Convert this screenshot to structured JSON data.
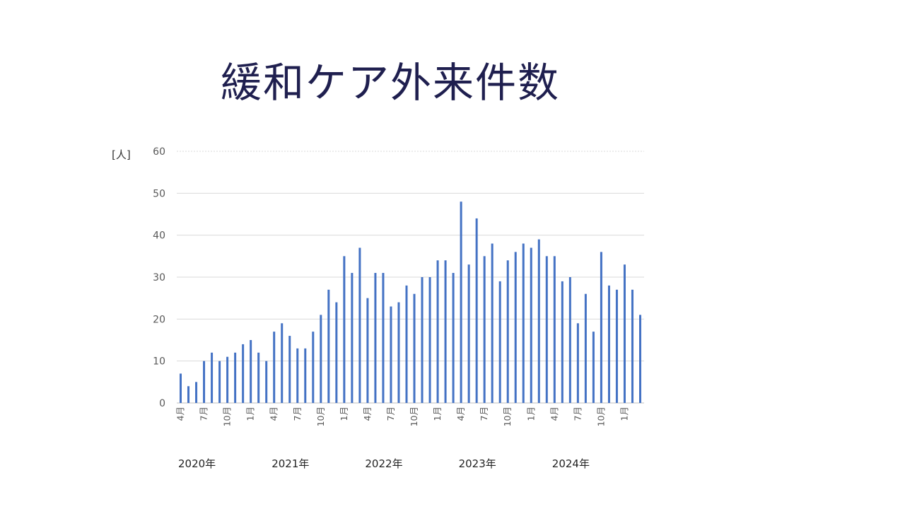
{
  "title": "緩和ケア外来件数",
  "chart_data": {
    "type": "bar",
    "title": "緩和ケア外来件数",
    "ylabel": "[人]",
    "ylim": [
      0,
      60
    ],
    "yticks": [
      0,
      10,
      20,
      30,
      40,
      50,
      60
    ],
    "grid": true,
    "bar_color": "#4472C4",
    "categories": [
      "4月",
      "5月",
      "6月",
      "7月",
      "8月",
      "9月",
      "10月",
      "11月",
      "12月",
      "1月",
      "2月",
      "3月",
      "4月",
      "5月",
      "6月",
      "7月",
      "8月",
      "9月",
      "10月",
      "11月",
      "12月",
      "1月",
      "2月",
      "3月",
      "4月",
      "5月",
      "6月",
      "7月",
      "8月",
      "9月",
      "10月",
      "11月",
      "12月",
      "1月",
      "2月",
      "3月",
      "4月",
      "5月",
      "6月",
      "7月",
      "8月",
      "9月",
      "10月",
      "11月",
      "12月",
      "1月",
      "2月",
      "3月",
      "4月",
      "5月",
      "6月",
      "7月",
      "8月",
      "9月",
      "10月",
      "11月",
      "12月",
      "1月",
      "2月",
      "3月"
    ],
    "tick_labels": [
      "4月",
      "",
      "",
      "7月",
      "",
      "",
      "10月",
      "",
      "",
      "1月",
      "",
      "",
      "4月",
      "",
      "",
      "7月",
      "",
      "",
      "10月",
      "",
      "",
      "1月",
      "",
      "",
      "4月",
      "",
      "",
      "7月",
      "",
      "",
      "10月",
      "",
      "",
      "1月",
      "",
      "",
      "4月",
      "",
      "",
      "7月",
      "",
      "",
      "10月",
      "",
      "",
      "1月",
      "",
      "",
      "4月",
      "",
      "",
      "7月",
      "",
      "",
      "10月",
      "",
      "",
      "1月",
      "",
      ""
    ],
    "year_groups": [
      "2020年",
      "2021年",
      "2022年",
      "2023年",
      "2024年"
    ],
    "values": [
      7,
      4,
      5,
      10,
      12,
      10,
      11,
      12,
      14,
      15,
      12,
      10,
      17,
      19,
      16,
      13,
      13,
      17,
      21,
      27,
      24,
      35,
      31,
      37,
      25,
      31,
      31,
      23,
      24,
      28,
      26,
      30,
      30,
      34,
      34,
      31,
      48,
      33,
      44,
      35,
      38,
      29,
      34,
      36,
      38,
      37,
      39,
      35,
      35,
      29,
      30,
      19,
      26,
      17,
      36,
      28,
      27,
      33,
      27,
      21
    ]
  }
}
